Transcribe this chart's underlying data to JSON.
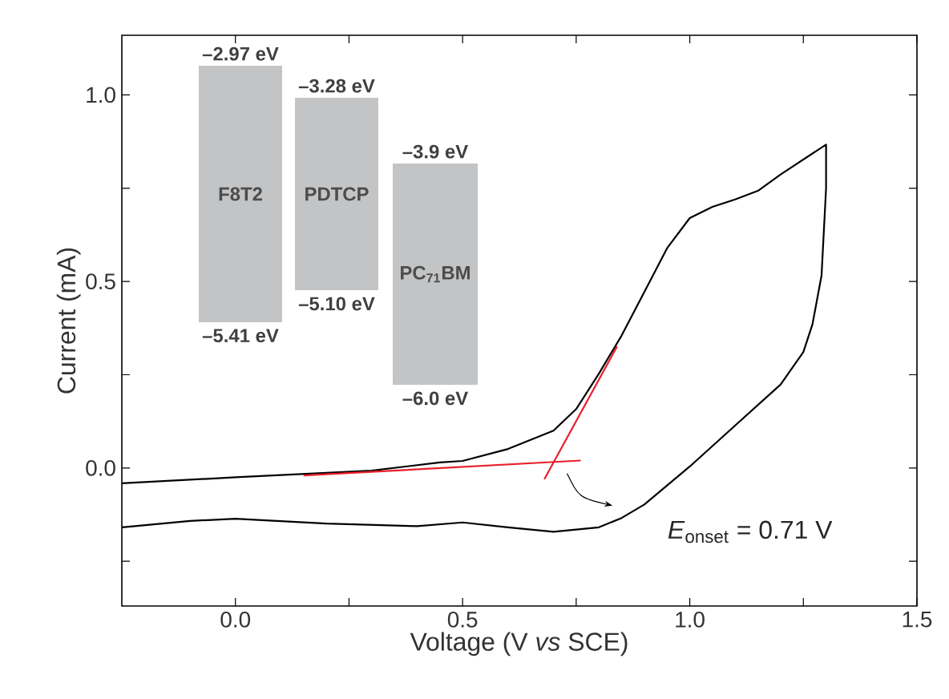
{
  "chart_data": [
    {
      "type": "line",
      "xlabel": "Voltage (V *vs* SCE)",
      "ylabel": "Current (mA)",
      "xlim": [
        -0.25,
        1.5
      ],
      "ylim": [
        -0.37,
        1.16
      ],
      "xticks": [
        {
          "value": 0,
          "label": "0.0"
        },
        {
          "value": 0.25,
          "label": null
        },
        0.5,
        {
          "value": 0.75,
          "label": null
        },
        {
          "value": 1,
          "label": "1.0"
        },
        {
          "value": 1.25,
          "label": null
        },
        1.5
      ],
      "yticks": [
        {
          "value": -0.25,
          "label": null
        },
        {
          "value": 0,
          "label": "0.0"
        },
        {
          "value": 0.25,
          "label": null
        },
        0.5,
        {
          "value": 0.75,
          "label": null
        },
        {
          "value": 1,
          "label": "1.0"
        }
      ],
      "grid": false,
      "marker": "none",
      "line_style": "solid",
      "annotations": [
        "*E*$_{onset}$ = 0.71 V"
      ],
      "series": [
        {
          "color": "#000000",
          "x": [
            -0.25,
            0,
            0.3,
            0.45,
            0.5,
            0.6,
            0.7,
            0.75,
            0.8,
            0.85,
            0.9,
            0.95,
            1.0,
            1.05,
            1.1,
            1.15,
            1.2,
            1.3,
            1.3,
            1.29,
            1.27,
            1.25,
            1.2,
            1.1,
            1.0,
            0.9,
            0.85,
            0.8,
            0.7,
            0.6,
            0.5,
            0.4,
            0.2,
            0.0,
            -0.1,
            -0.25
          ],
          "values": [
            -0.041,
            -0.025,
            -0.007,
            0.015,
            0.019,
            0.051,
            0.1,
            0.158,
            0.253,
            0.355,
            0.472,
            0.589,
            0.67,
            0.7,
            0.72,
            0.743,
            0.787,
            0.867,
            0.75,
            0.516,
            0.385,
            0.311,
            0.224,
            0.114,
            0.004,
            -0.098,
            -0.134,
            -0.159,
            -0.171,
            -0.159,
            -0.146,
            -0.156,
            -0.149,
            -0.136,
            -0.142,
            -0.159
          ]
        },
        {
          "type": "line",
          "color": "#e8202a",
          "x": [
            0.15,
            0.76
          ],
          "values": [
            -0.02,
            0.02
          ]
        },
        {
          "type": "line",
          "color": "#e8202a",
          "x": [
            0.68,
            0.84
          ],
          "values": [
            -0.03,
            0.326
          ]
        }
      ]
    },
    {
      "type": "other",
      "categories": [
        "F8T2",
        "PDTCP",
        "PC$_{71}$BM"
      ],
      "color": "#c3c4c6",
      "annotations": [
        "–2.97 eV",
        "–5.41 eV",
        "–3.28 eV",
        "–5.10 eV",
        "–3.9 eV",
        "–6.0 eV"
      ]
    }
  ]
}
